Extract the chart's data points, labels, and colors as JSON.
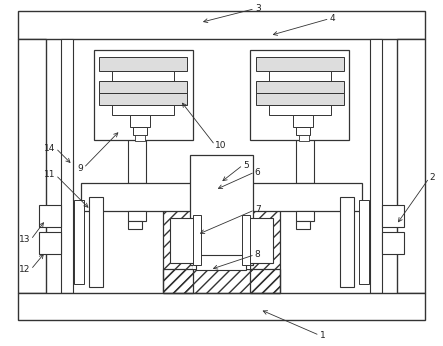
{
  "bg_color": "#ffffff",
  "line_color": "#333333",
  "label_color": "#222222",
  "fig_w": 4.43,
  "fig_h": 3.46,
  "dpi": 100
}
